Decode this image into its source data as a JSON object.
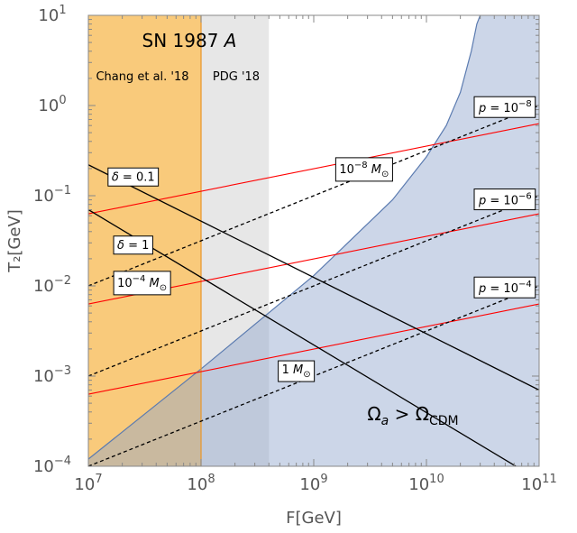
{
  "chart_data": {
    "type": "line",
    "title": "",
    "xlabel": "F[GeV]",
    "ylabel": "T₂[GeV]",
    "xscale": "log",
    "yscale": "log",
    "xlim": [
      10000000,
      100000000000
    ],
    "ylim": [
      0.0001,
      10
    ],
    "x_ticks": [
      {
        "value": 10000000,
        "mant": "10",
        "exp": "7"
      },
      {
        "value": 100000000,
        "mant": "10",
        "exp": "8"
      },
      {
        "value": 1000000000,
        "mant": "10",
        "exp": "9"
      },
      {
        "value": 10000000000,
        "mant": "10",
        "exp": "10"
      },
      {
        "value": 100000000000,
        "mant": "10",
        "exp": "11"
      }
    ],
    "y_ticks": [
      {
        "value": 0.0001,
        "mant": "10",
        "exp": "−4"
      },
      {
        "value": 0.001,
        "mant": "10",
        "exp": "−3"
      },
      {
        "value": 0.01,
        "mant": "10",
        "exp": "−2"
      },
      {
        "value": 0.1,
        "mant": "10",
        "exp": "−1"
      },
      {
        "value": 1,
        "mant": "10",
        "exp": "0"
      },
      {
        "value": 10,
        "mant": "10",
        "exp": "1"
      }
    ],
    "regions": [
      {
        "id": "chang",
        "label": "Chang et al. '18",
        "x": [
          10000000,
          100000000
        ],
        "color": "#f5a623",
        "opacity": 0.6
      },
      {
        "id": "pdg",
        "label": "PDG '18",
        "x": [
          100000000,
          400000000
        ],
        "color": "#d3d3d3",
        "opacity": 0.55
      },
      {
        "id": "omega",
        "label_main": "Ω",
        "label_sub": "a",
        "label_mid": " > Ω",
        "label_sub2": "CDM",
        "color": "#8ea5cb",
        "opacity": 0.45,
        "boundary": {
          "x": [
            10000000,
            100000000,
            1000000000,
            5000000000,
            10000000000,
            15000000000,
            20000000000,
            25000000000,
            28000000000,
            30000000000
          ],
          "y": [
            0.00012,
            0.0012,
            0.013,
            0.09,
            0.27,
            0.6,
            1.4,
            4.0,
            8.0,
            10
          ]
        }
      }
    ],
    "sn_label": {
      "text": "SN 1987 ",
      "italic": "A"
    },
    "series": [
      {
        "name": "10⁻⁸ M⊙",
        "type": "mass",
        "x": [
          10000000,
          100000000000
        ],
        "y": [
          0.063,
          0.63
        ],
        "color": "#ff0000",
        "dash": false
      },
      {
        "name": "10⁻⁴ M⊙",
        "type": "mass",
        "x": [
          10000000,
          100000000000
        ],
        "y": [
          0.0063,
          0.063
        ],
        "color": "#ff0000",
        "dash": false
      },
      {
        "name": "1 M⊙",
        "type": "mass",
        "x": [
          10000000,
          100000000000
        ],
        "y": [
          0.00063,
          0.0063
        ],
        "color": "#ff0000",
        "dash": false
      },
      {
        "name": "δ = 0.1",
        "type": "delta",
        "x": [
          10000000,
          100000000000
        ],
        "y": [
          0.22,
          0.0007
        ],
        "color": "#000000",
        "dash": false
      },
      {
        "name": "δ = 1",
        "type": "delta",
        "x": [
          10000000,
          100000000000
        ],
        "y": [
          0.07,
          7e-05
        ],
        "color": "#000000",
        "dash": false
      },
      {
        "name": "p = 10⁻⁸",
        "type": "p",
        "x": [
          10000000,
          100000000000
        ],
        "y": [
          0.01,
          1.0
        ],
        "color": "#000000",
        "dash": true
      },
      {
        "name": "p = 10⁻⁶",
        "type": "p",
        "x": [
          10000000,
          100000000000
        ],
        "y": [
          0.001,
          0.1
        ],
        "color": "#000000",
        "dash": true
      },
      {
        "name": "p = 10⁻⁴",
        "type": "p",
        "x": [
          10000000,
          100000000000
        ],
        "y": [
          0.0001,
          0.01
        ],
        "color": "#000000",
        "dash": true
      }
    ],
    "labels": [
      {
        "id": "mass8",
        "mant": "10",
        "exp": "−8",
        "unit": " M",
        "sub": "⊙",
        "x": 2800000000,
        "y": 0.2
      },
      {
        "id": "mass4",
        "mant": "10",
        "exp": "−4",
        "unit": " M",
        "sub": "⊙",
        "x": 30000000,
        "y": 0.011
      },
      {
        "id": "mass0",
        "mant": "1",
        "exp": "",
        "unit": " M",
        "sub": "⊙",
        "x": 700000000,
        "y": 0.0012
      },
      {
        "id": "delta01",
        "italic": "δ",
        "rest": " = 0.1",
        "x": 25000000,
        "y": 0.165
      },
      {
        "id": "delta1",
        "italic": "δ",
        "rest": " = 1",
        "x": 25000000,
        "y": 0.029
      },
      {
        "id": "p8",
        "italic": "p",
        "rest": " = 10",
        "exp": "−8",
        "x": 50000000000,
        "y": 0.95
      },
      {
        "id": "p6",
        "italic": "p",
        "rest": " = 10",
        "exp": "−6",
        "x": 50000000000,
        "y": 0.09
      },
      {
        "id": "p4",
        "italic": "p",
        "rest": " = 10",
        "exp": "−4",
        "x": 50000000000,
        "y": 0.0095
      }
    ],
    "grid": false,
    "legend": "none"
  }
}
